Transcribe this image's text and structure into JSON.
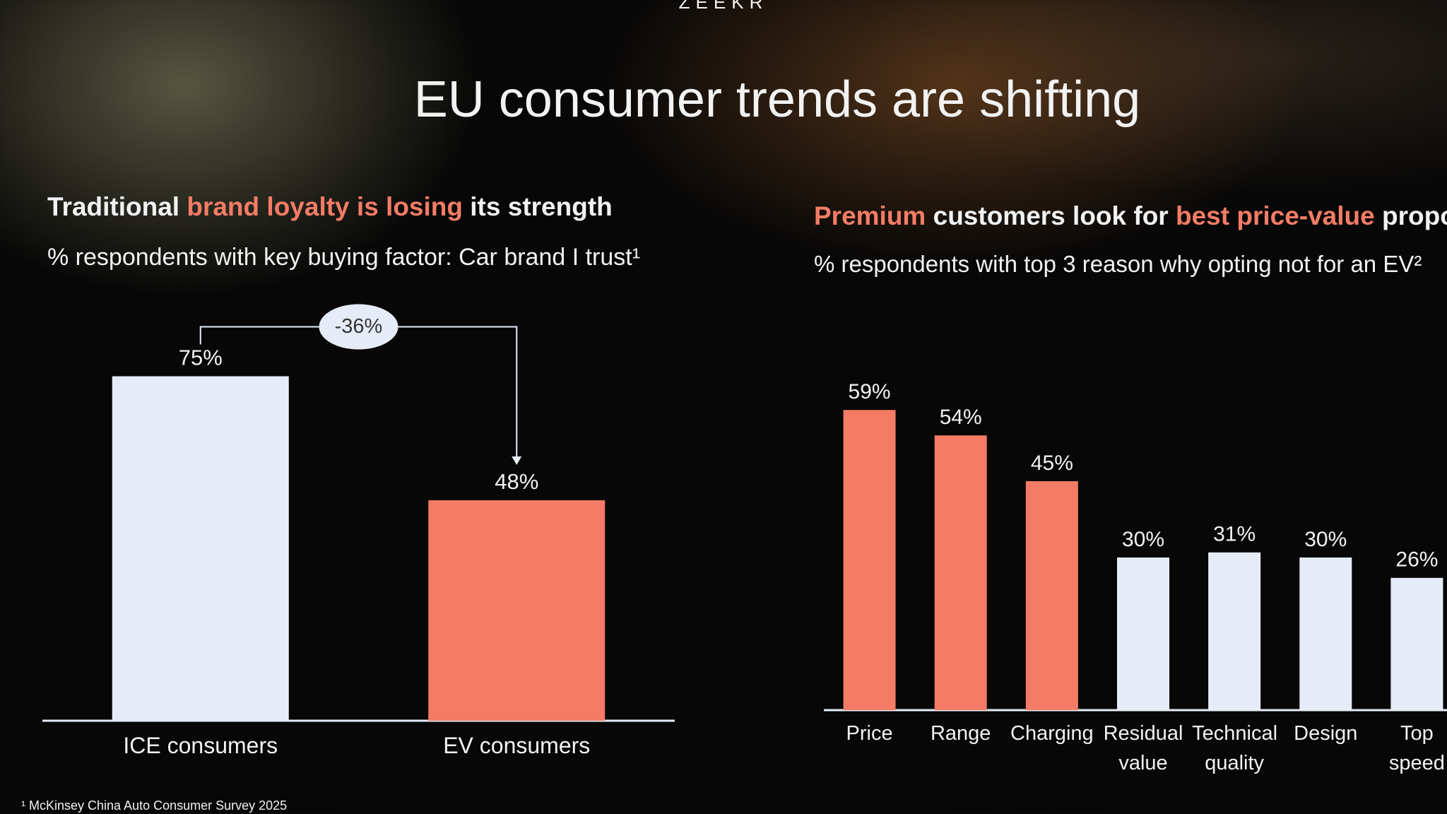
{
  "logo": "ZEEKR",
  "title": "EU consumer trends are shifting",
  "footnote": "¹ McKinsey China Auto Consumer Survey 2025",
  "highlight_color": "#f47c66",
  "chart_data": [
    {
      "type": "bar",
      "title": [
        {
          "text": "Traditional "
        },
        {
          "text": "brand loyalty is losing",
          "highlight": true
        },
        {
          "text": " its strength"
        }
      ],
      "subtitle": "% respondents with key buying factor: Car brand I trust¹",
      "categories": [
        "ICE consumers",
        "EV consumers"
      ],
      "values": [
        75,
        48
      ],
      "value_labels": [
        "75%",
        "48%"
      ],
      "colors": [
        "#e6ecf7",
        "#f47c66"
      ],
      "ylim": [
        0,
        80
      ],
      "annotation": {
        "value": -36,
        "label": "-36%"
      }
    },
    {
      "type": "bar",
      "title": [
        {
          "text": "Premium",
          "highlight": true
        },
        {
          "text": " customers look for "
        },
        {
          "text": "best price-value",
          "highlight": true
        },
        {
          "text": " proposit"
        }
      ],
      "subtitle": "% respondents with top 3 reason why opting not for an EV²",
      "categories": [
        "Price",
        "Range",
        "Charging",
        "Residual value",
        "Technical quality",
        "Design",
        "Top speed"
      ],
      "values": [
        59,
        54,
        45,
        30,
        31,
        30,
        26
      ],
      "value_labels": [
        "59%",
        "54%",
        "45%",
        "30%",
        "31%",
        "30%",
        "26%"
      ],
      "colors": [
        "#f47c66",
        "#f47c66",
        "#f47c66",
        "#e6ecf7",
        "#e6ecf7",
        "#e6ecf7",
        "#e6ecf7"
      ],
      "ylim": [
        0,
        65
      ]
    }
  ]
}
